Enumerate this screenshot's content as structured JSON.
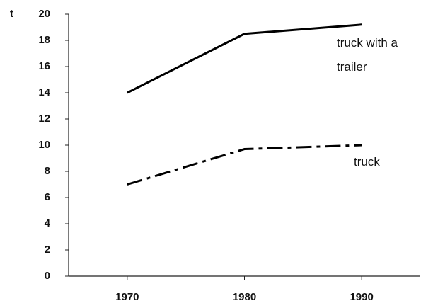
{
  "chart_data": {
    "type": "line",
    "y_label": "t",
    "x": [
      1970,
      1980,
      1990
    ],
    "series": [
      {
        "name": "truck with a trailer",
        "color": "#000000",
        "style": "solid",
        "values": [
          14,
          18.5,
          19.2
        ]
      },
      {
        "name": "truck",
        "color": "#000000",
        "style": "dashdot",
        "values": [
          7,
          9.7,
          10
        ]
      }
    ],
    "xlim": [
      1965,
      1995
    ],
    "xticks": [
      1970,
      1980,
      1990
    ],
    "ylim": [
      0,
      20
    ],
    "yticks": [
      0,
      2,
      4,
      6,
      8,
      10,
      12,
      14,
      16,
      18,
      20
    ],
    "grid": false
  }
}
